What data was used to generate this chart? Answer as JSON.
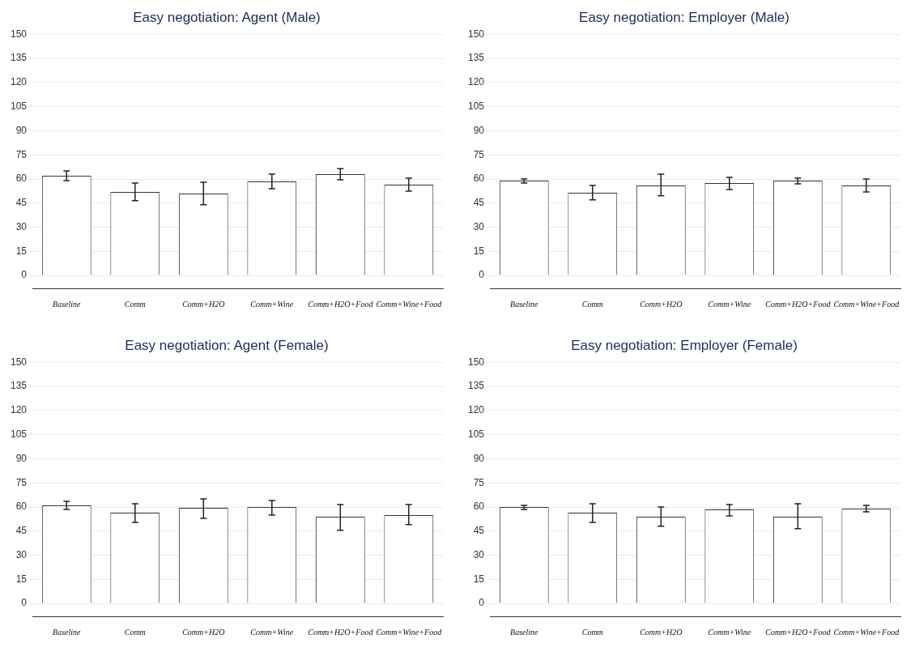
{
  "chart_data": [
    {
      "type": "bar",
      "title": "Easy negotiation: Agent (Male)",
      "categories": [
        "Baseline",
        "Comm",
        "Comm+H2O",
        "Comm+Wine",
        "Comm+H2O+Food",
        "Comm+Wine+Food"
      ],
      "values": [
        62,
        52,
        51,
        58.5,
        63,
        56.5
      ],
      "errors": [
        [
          59,
          65
        ],
        [
          46.5,
          57.5
        ],
        [
          44,
          58
        ],
        [
          54,
          63
        ],
        [
          59.5,
          66.5
        ],
        [
          52.5,
          60.5
        ]
      ],
      "color": "#ffffff",
      "ylim": [
        -8,
        150
      ],
      "yticks": [
        0,
        15,
        30,
        45,
        60,
        75,
        90,
        105,
        120,
        135,
        150
      ],
      "grid": "y",
      "legend": false
    },
    {
      "type": "bar",
      "title": "Easy negotiation: Employer (Male)",
      "categories": [
        "Baseline",
        "Comm",
        "Comm+H2O",
        "Comm+Wine",
        "Comm+H2O+Food",
        "Comm+Wine+Food"
      ],
      "values": [
        59,
        51.5,
        56,
        57.5,
        59,
        56
      ],
      "errors": [
        [
          57.5,
          60
        ],
        [
          47,
          56
        ],
        [
          49.5,
          63
        ],
        [
          53.5,
          61
        ],
        [
          57,
          60.5
        ],
        [
          52,
          60
        ]
      ],
      "color": "#ffffff",
      "ylim": [
        -8,
        150
      ],
      "yticks": [
        0,
        15,
        30,
        45,
        60,
        75,
        90,
        105,
        120,
        135,
        150
      ],
      "grid": "y",
      "legend": false
    },
    {
      "type": "bar",
      "title": "Easy negotiation: Agent (Female)",
      "categories": [
        "Baseline",
        "Comm",
        "Comm+H2O",
        "Comm+Wine",
        "Comm+H2O+Food",
        "Comm+Wine+Food"
      ],
      "values": [
        61,
        56.5,
        59.5,
        60,
        54,
        55
      ],
      "errors": [
        [
          58.5,
          63.5
        ],
        [
          50.5,
          62
        ],
        [
          53,
          65
        ],
        [
          55,
          64
        ],
        [
          45.5,
          61.5
        ],
        [
          49,
          61.5
        ]
      ],
      "color": "#ffffff",
      "ylim": [
        -8,
        150
      ],
      "yticks": [
        0,
        15,
        30,
        45,
        60,
        75,
        90,
        105,
        120,
        135,
        150
      ],
      "grid": "y",
      "legend": false
    },
    {
      "type": "bar",
      "title": "Easy negotiation: Employer (Female)",
      "categories": [
        "Baseline",
        "Comm",
        "Comm+H2O",
        "Comm+Wine",
        "Comm+H2O+Food",
        "Comm+Wine+Food"
      ],
      "values": [
        60,
        56.5,
        54,
        58.5,
        54,
        59
      ],
      "errors": [
        [
          58.5,
          61
        ],
        [
          50.5,
          62
        ],
        [
          48,
          60
        ],
        [
          54.5,
          61.5
        ],
        [
          46.5,
          62
        ],
        [
          57,
          61
        ]
      ],
      "color": "#ffffff",
      "ylim": [
        -8,
        150
      ],
      "yticks": [
        0,
        15,
        30,
        45,
        60,
        75,
        90,
        105,
        120,
        135,
        150
      ],
      "grid": "y",
      "legend": false
    }
  ]
}
